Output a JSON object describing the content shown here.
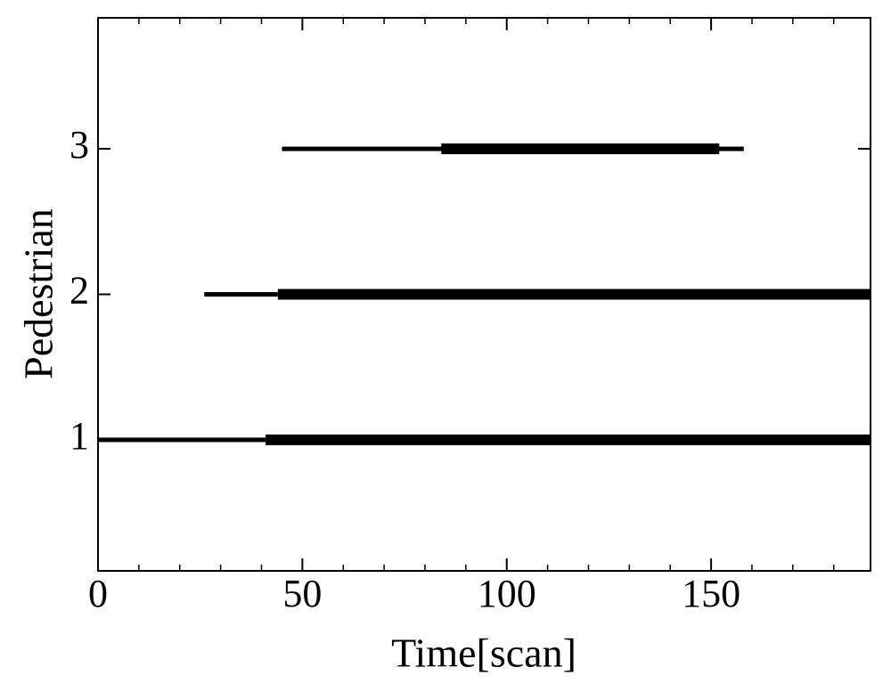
{
  "chart_data": {
    "type": "track",
    "x_label": "Time[scan]",
    "y_label": "Pedestrian",
    "xlim": [
      0,
      189
    ],
    "xticks": [
      0,
      50,
      100,
      150
    ],
    "xminor_ticks": [
      10,
      20,
      30,
      40,
      60,
      70,
      80,
      90,
      110,
      120,
      130,
      140,
      160,
      170,
      180
    ],
    "ylim": [
      0.1,
      3.9
    ],
    "yticks": [
      1,
      2,
      3
    ],
    "color": "#000000",
    "tracks": [
      {
        "y": 1,
        "thin": [
          0,
          41
        ],
        "thick": [
          41,
          189
        ]
      },
      {
        "y": 2,
        "thin": [
          26,
          44
        ],
        "thick": [
          44,
          189
        ]
      },
      {
        "y": 3,
        "thin": [
          45,
          158
        ],
        "thick": [
          84,
          152
        ]
      }
    ]
  }
}
